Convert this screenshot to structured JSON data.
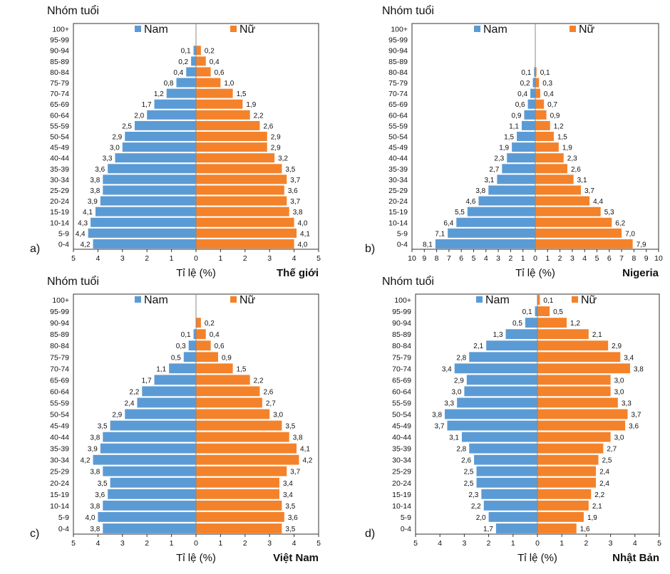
{
  "colors": {
    "male": "#5b9bd5",
    "female": "#f4822a",
    "axis": "#333333",
    "text": "#111111"
  },
  "chart_data": [
    {
      "type": "bar",
      "orientation": "population-pyramid",
      "panel_label": "a)",
      "title": "Thế giới",
      "ylabel": "Nhóm tuổi",
      "xlabel": "Tỉ lệ (%)",
      "xlim": [
        -5,
        5
      ],
      "x_ticks": [
        5,
        4,
        3,
        2,
        1,
        0,
        1,
        2,
        3,
        4,
        5
      ],
      "categories": [
        "0-4",
        "5-9",
        "10-14",
        "15-19",
        "20-24",
        "25-29",
        "30-34",
        "35-39",
        "40-44",
        "45-49",
        "50-54",
        "55-59",
        "60-64",
        "65-69",
        "70-74",
        "75-79",
        "80-84",
        "85-89",
        "90-94",
        "95-99",
        "100+"
      ],
      "series": [
        {
          "name": "Nam",
          "values": [
            4.2,
            4.4,
            4.3,
            4.1,
            3.9,
            3.8,
            3.8,
            3.6,
            3.3,
            3.0,
            2.9,
            2.5,
            2.0,
            1.7,
            1.2,
            0.8,
            0.4,
            0.2,
            0.1,
            null,
            null
          ],
          "labels": [
            "4,2",
            "4,4",
            "4,3",
            "4,1",
            "3,9",
            "3,8",
            "3,8",
            "3,6",
            "3,3",
            "3,0",
            "2,9",
            "2,5",
            "2,0",
            "1,7",
            "1,2",
            "0,8",
            "0,4",
            "0,2",
            "0,1",
            "",
            ""
          ]
        },
        {
          "name": "Nữ",
          "values": [
            4.0,
            4.1,
            4.0,
            3.8,
            3.7,
            3.6,
            3.7,
            3.5,
            3.2,
            2.9,
            2.9,
            2.6,
            2.2,
            1.9,
            1.5,
            1.0,
            0.6,
            0.4,
            0.2,
            null,
            null
          ],
          "labels": [
            "4,0",
            "4,1",
            "4,0",
            "3,8",
            "3,7",
            "3,6",
            "3,7",
            "3,5",
            "3,2",
            "2,9",
            "2,9",
            "2,6",
            "2,2",
            "1,9",
            "1,5",
            "1,0",
            "0,6",
            "0,4",
            "0,2",
            "",
            ""
          ]
        }
      ]
    },
    {
      "type": "bar",
      "orientation": "population-pyramid",
      "panel_label": "b)",
      "title": "Nigeria",
      "ylabel": "Nhóm tuổi",
      "xlabel": "Tỉ lệ (%)",
      "xlim": [
        -10,
        10
      ],
      "x_ticks": [
        10,
        9,
        8,
        7,
        6,
        5,
        4,
        3,
        2,
        1,
        0,
        1,
        2,
        3,
        4,
        5,
        6,
        7,
        8,
        9,
        10
      ],
      "categories": [
        "0-4",
        "5-9",
        "10-14",
        "15-19",
        "20-24",
        "25-29",
        "30-34",
        "35-39",
        "40-44",
        "45-49",
        "50-54",
        "55-59",
        "60-64",
        "65-69",
        "70-74",
        "75-79",
        "80-84",
        "85-89",
        "90-94",
        "95-99",
        "100+"
      ],
      "series": [
        {
          "name": "Nam",
          "values": [
            8.1,
            7.1,
            6.4,
            5.5,
            4.6,
            3.8,
            3.1,
            2.7,
            2.3,
            1.9,
            1.5,
            1.1,
            0.9,
            0.6,
            0.4,
            0.2,
            0.1,
            null,
            null,
            null,
            null
          ],
          "labels": [
            "8,1",
            "7,1",
            "6,4",
            "5,5",
            "4,6",
            "3,8",
            "3,1",
            "2,7",
            "2,3",
            "1,9",
            "1,5",
            "1,1",
            "0,9",
            "0,6",
            "0,4",
            "0,2",
            "0,1",
            "",
            "",
            "",
            ""
          ]
        },
        {
          "name": "Nữ",
          "values": [
            7.9,
            7.0,
            6.2,
            5.3,
            4.4,
            3.7,
            3.1,
            2.6,
            2.3,
            1.9,
            1.5,
            1.2,
            0.9,
            0.7,
            0.4,
            0.3,
            0.1,
            null,
            null,
            null,
            null
          ],
          "labels": [
            "7,9",
            "7,0",
            "6,2",
            "5,3",
            "4,4",
            "3,7",
            "3,1",
            "2,6",
            "2,3",
            "1,9",
            "1,5",
            "1,2",
            "0,9",
            "0,7",
            "0,4",
            "0,3",
            "0,1",
            "",
            "",
            "",
            ""
          ]
        }
      ]
    },
    {
      "type": "bar",
      "orientation": "population-pyramid",
      "panel_label": "c)",
      "title": "Việt Nam",
      "ylabel": "Nhóm tuổi",
      "xlabel": "Tỉ lệ (%)",
      "xlim": [
        -5,
        5
      ],
      "x_ticks": [
        5,
        4,
        3,
        2,
        1,
        0,
        1,
        2,
        3,
        4,
        5
      ],
      "categories": [
        "0-4",
        "5-9",
        "10-14",
        "15-19",
        "20-24",
        "25-29",
        "30-34",
        "35-39",
        "40-44",
        "45-49",
        "50-54",
        "55-59",
        "60-64",
        "65-69",
        "70-74",
        "75-79",
        "80-84",
        "85-89",
        "90-94",
        "95-99",
        "100+"
      ],
      "series": [
        {
          "name": "Nam",
          "values": [
            3.8,
            4.0,
            3.8,
            3.6,
            3.5,
            3.8,
            4.2,
            3.9,
            3.8,
            3.5,
            2.9,
            2.4,
            2.2,
            1.7,
            1.1,
            0.5,
            0.3,
            0.1,
            null,
            null,
            null
          ],
          "labels": [
            "3,8",
            "4,0",
            "3,8",
            "3,6",
            "3,5",
            "3,8",
            "4,2",
            "3,9",
            "3,8",
            "3,5",
            "2,9",
            "2,4",
            "2,2",
            "1,7",
            "1,1",
            "0,5",
            "0,3",
            "0,1",
            "",
            "",
            ""
          ]
        },
        {
          "name": "Nữ",
          "values": [
            3.5,
            3.6,
            3.5,
            3.4,
            3.4,
            3.7,
            4.2,
            4.1,
            3.8,
            3.5,
            3.0,
            2.7,
            2.6,
            2.2,
            1.5,
            0.9,
            0.6,
            0.4,
            0.2,
            null,
            null
          ],
          "labels": [
            "3,5",
            "3,6",
            "3,5",
            "3,4",
            "3,4",
            "3,7",
            "4,2",
            "4,1",
            "3,8",
            "3,5",
            "3,0",
            "2,7",
            "2,6",
            "2,2",
            "1,5",
            "0,9",
            "0,6",
            "0,4",
            "0,2",
            "",
            ""
          ]
        }
      ]
    },
    {
      "type": "bar",
      "orientation": "population-pyramid",
      "panel_label": "d)",
      "title": "Nhật Bản",
      "ylabel": "Nhóm tuổi",
      "xlabel": "Tỉ lệ (%)",
      "xlim": [
        -5,
        5
      ],
      "x_ticks": [
        5,
        4,
        3,
        2,
        1,
        0,
        1,
        2,
        3,
        4,
        5
      ],
      "categories": [
        "0-4",
        "5-9",
        "10-14",
        "15-19",
        "20-24",
        "25-29",
        "30-34",
        "35-39",
        "40-44",
        "45-49",
        "50-54",
        "55-59",
        "60-64",
        "65-69",
        "70-74",
        "75-79",
        "80-84",
        "85-89",
        "90-94",
        "95-99",
        "100+"
      ],
      "series": [
        {
          "name": "Nam",
          "values": [
            1.7,
            2.0,
            2.2,
            2.3,
            2.5,
            2.5,
            2.6,
            2.8,
            3.1,
            3.7,
            3.8,
            3.3,
            3.0,
            2.9,
            3.4,
            2.8,
            2.1,
            1.3,
            0.5,
            0.1,
            null
          ],
          "labels": [
            "1,7",
            "2,0",
            "2,2",
            "2,3",
            "2,5",
            "2,5",
            "2,6",
            "2,8",
            "3,1",
            "3,7",
            "3,8",
            "3,3",
            "3,0",
            "2,9",
            "3,4",
            "2,8",
            "2,1",
            "1,3",
            "0,5",
            "0,1",
            ""
          ]
        },
        {
          "name": "Nữ",
          "values": [
            1.6,
            1.9,
            2.1,
            2.2,
            2.4,
            2.4,
            2.5,
            2.7,
            3.0,
            3.6,
            3.7,
            3.3,
            3.0,
            3.0,
            3.8,
            3.4,
            2.9,
            2.1,
            1.2,
            0.5,
            0.1
          ],
          "labels": [
            "1,6",
            "1,9",
            "2,1",
            "2,2",
            "2,4",
            "2,4",
            "2,5",
            "2,7",
            "3,0",
            "3,6",
            "3,7",
            "3,3",
            "3,0",
            "3,0",
            "3,8",
            "3,4",
            "2,9",
            "2,1",
            "1,2",
            "0,5",
            "0,1"
          ]
        }
      ]
    }
  ]
}
